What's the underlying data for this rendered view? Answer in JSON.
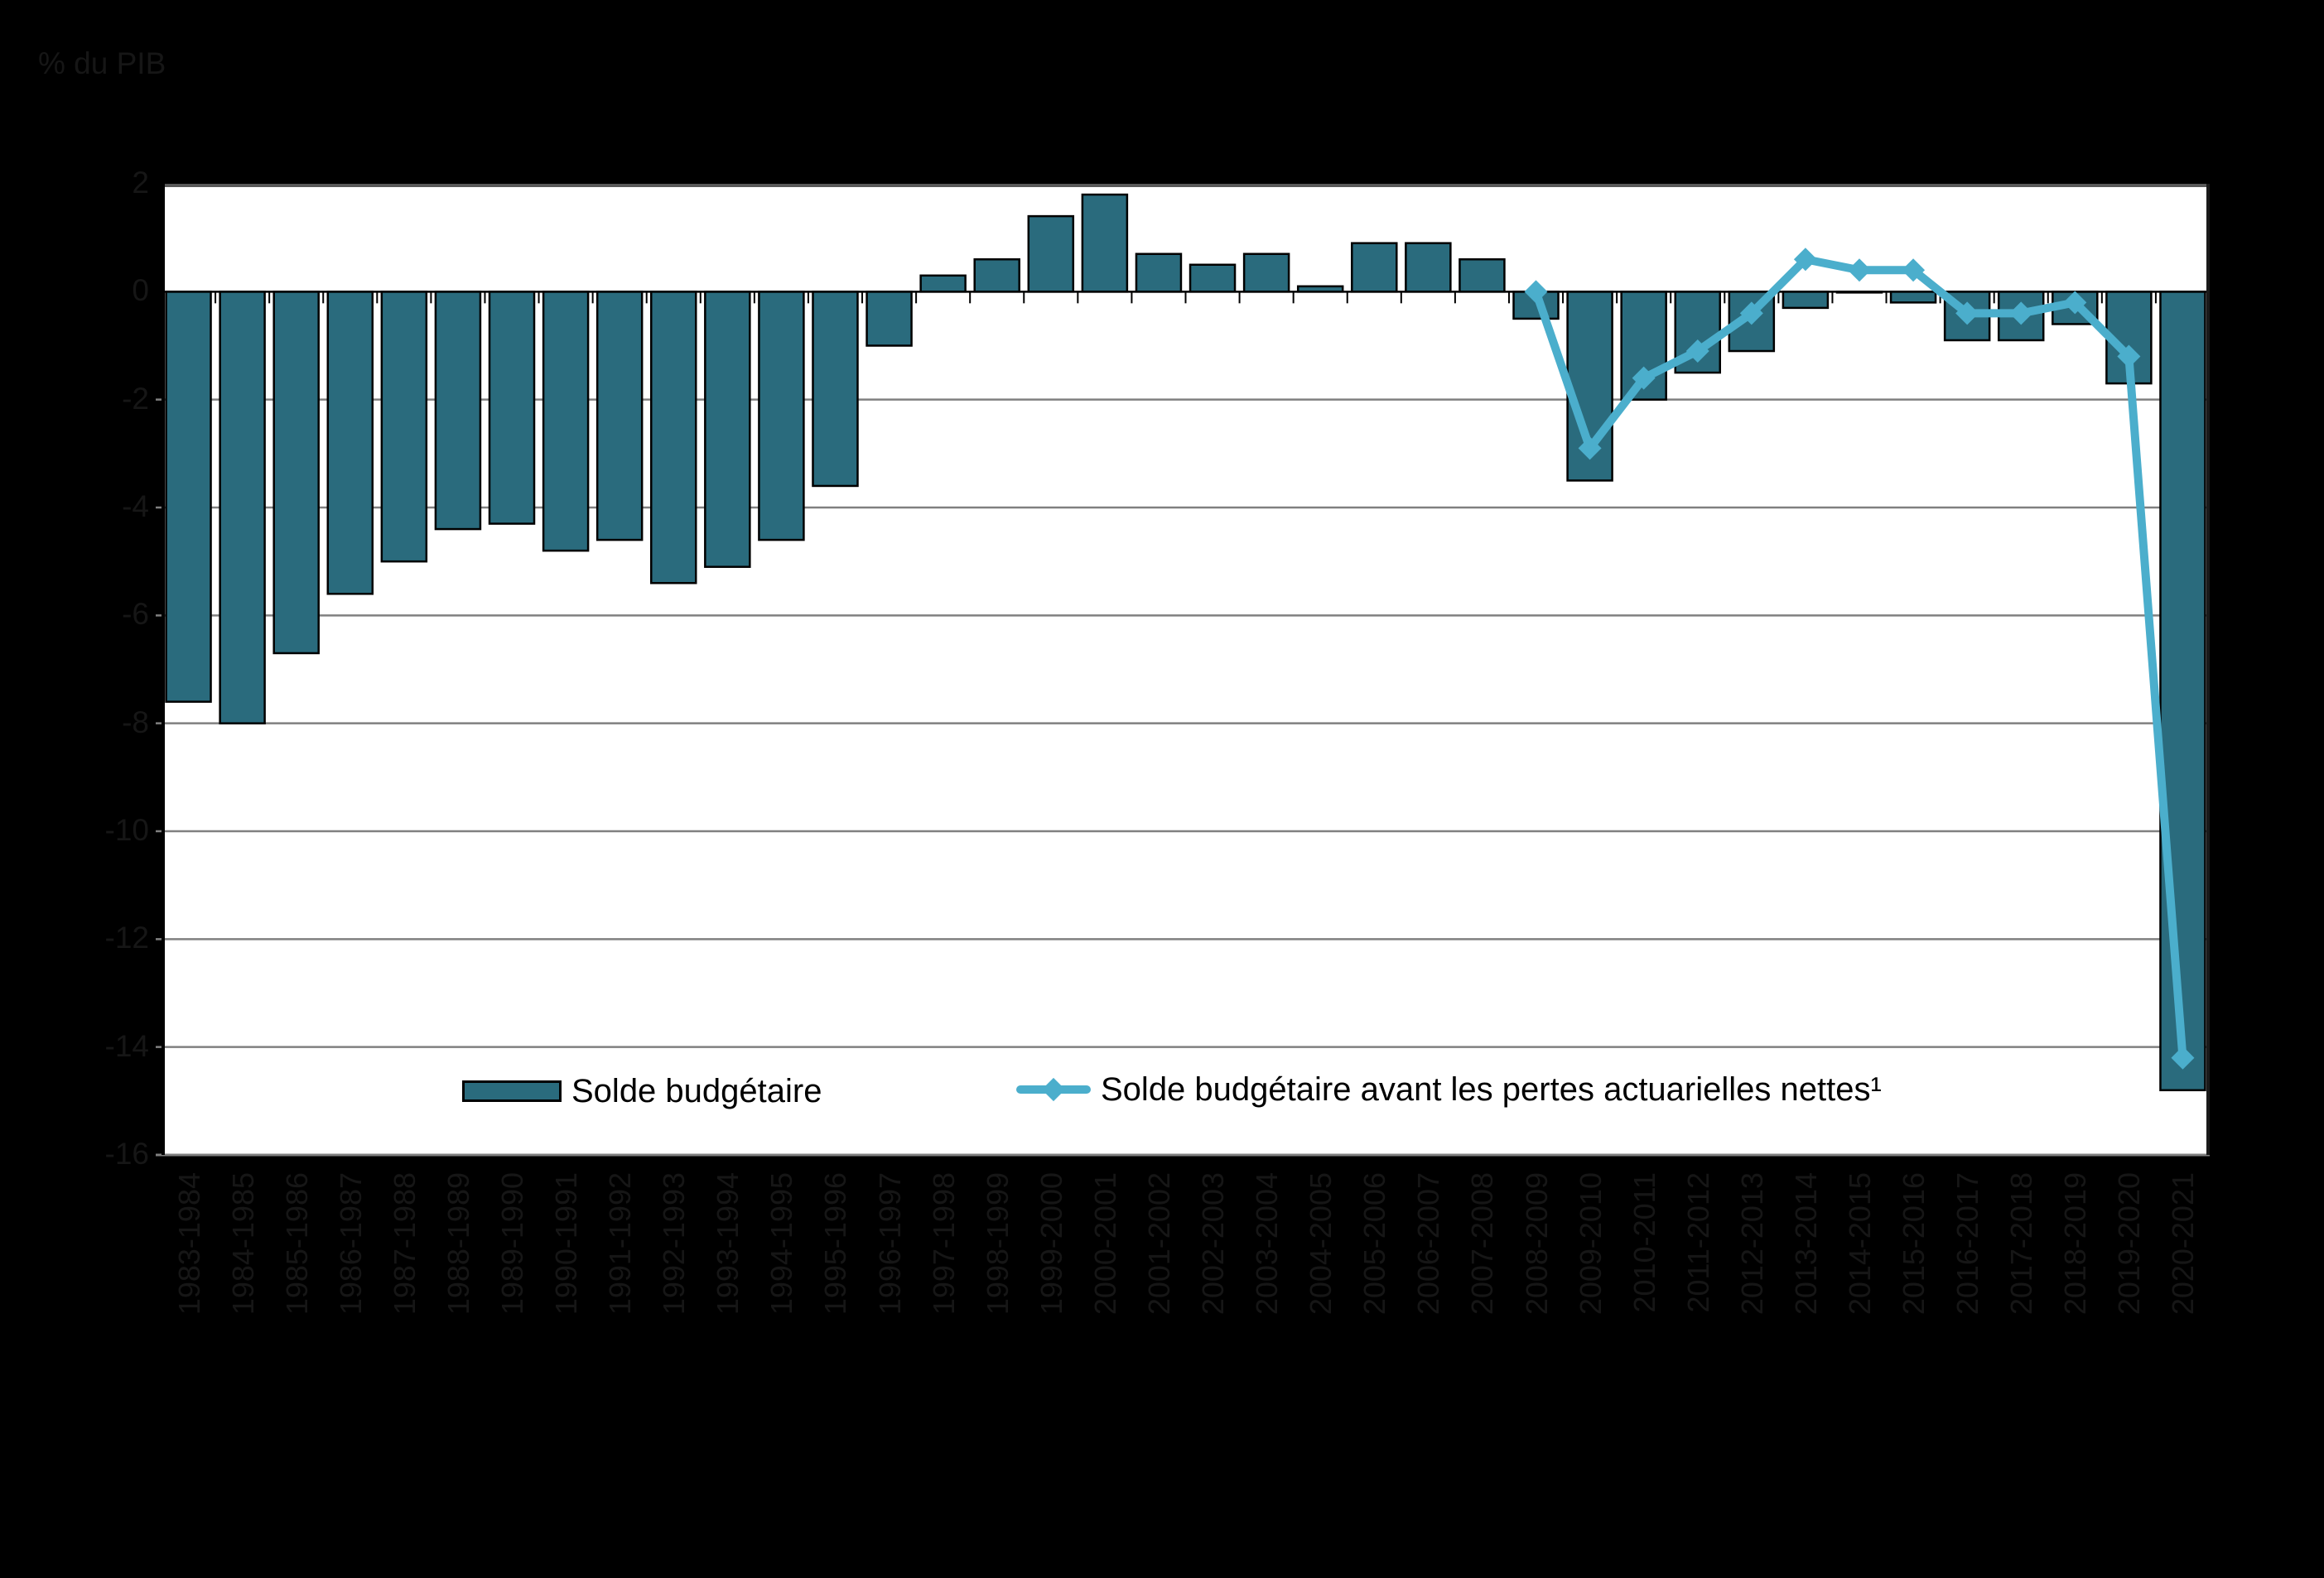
{
  "page": {
    "background": "#000000",
    "plot_background": "#FFFFFF"
  },
  "axis": {
    "unit_label": "% du PIB",
    "y_tick_labels": [
      "2",
      "0",
      "-2",
      "-4",
      "-6",
      "-8",
      "-10",
      "-12",
      "-14",
      "-16"
    ]
  },
  "chart_data": {
    "type": "bar",
    "title": "",
    "xlabel": "",
    "ylabel": "% du PIB",
    "ylim": [
      -16,
      2
    ],
    "ytick_step": 2,
    "grid": true,
    "legend_position": "bottom-inside",
    "categories": [
      "1983-1984",
      "1984-1985",
      "1985-1986",
      "1986-1987",
      "1987-1988",
      "1988-1989",
      "1989-1990",
      "1990-1991",
      "1991-1992",
      "1992-1993",
      "1993-1994",
      "1994-1995",
      "1995-1996",
      "1996-1997",
      "1997-1998",
      "1998-1999",
      "1999-2000",
      "2000-2001",
      "2001-2002",
      "2002-2003",
      "2003-2004",
      "2004-2005",
      "2005-2006",
      "2006-2007",
      "2007-2008",
      "2008-2009",
      "2009-2010",
      "2010-2011",
      "2011-2012",
      "2012-2013",
      "2013-2014",
      "2014-2015",
      "2015-2016",
      "2016-2017",
      "2017-2018",
      "2018-2019",
      "2019-2020",
      "2020-2021"
    ],
    "series": [
      {
        "name": "Solde budgétaire",
        "type": "bar",
        "color": "#2A6B7D",
        "values": [
          -7.6,
          -8.0,
          -6.7,
          -5.6,
          -5.0,
          -4.4,
          -4.3,
          -4.8,
          -4.6,
          -5.4,
          -5.1,
          -4.6,
          -3.6,
          -1.0,
          0.3,
          0.6,
          1.4,
          1.8,
          0.7,
          0.5,
          0.7,
          0.1,
          0.9,
          0.9,
          0.6,
          -0.5,
          -3.5,
          -2.0,
          -1.5,
          -1.1,
          -0.3,
          0.0,
          -0.2,
          -0.9,
          -0.9,
          -0.6,
          -1.7,
          -14.8
        ]
      },
      {
        "name": "Solde budgétaire avant les pertes actuarielles nettes¹",
        "type": "line",
        "color": "#4BAECC",
        "start_index": 25,
        "values": [
          0.0,
          -2.9,
          -1.6,
          -1.1,
          -0.4,
          0.6,
          0.4,
          0.4,
          -0.4,
          -0.4,
          -0.2,
          -1.2,
          -14.2
        ]
      }
    ]
  }
}
